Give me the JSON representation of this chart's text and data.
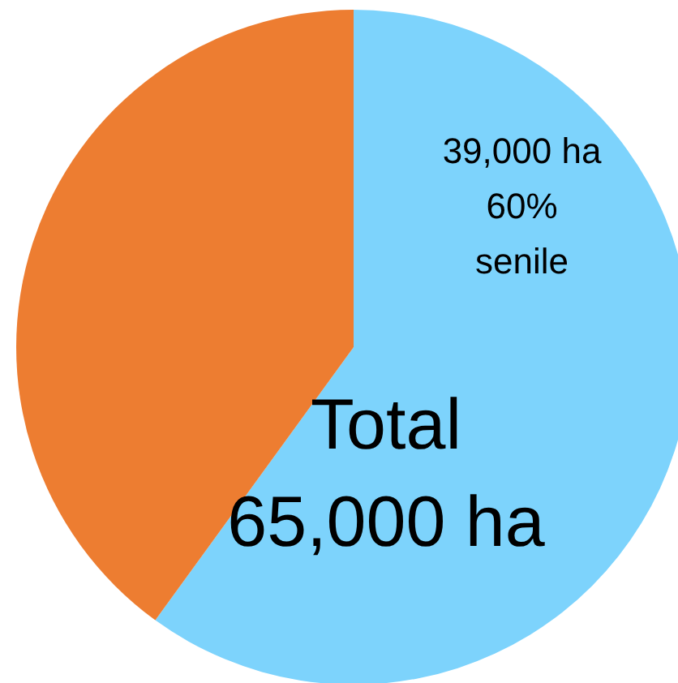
{
  "chart_data": {
    "type": "pie",
    "categories": [
      "senile",
      null
    ],
    "values": [
      60,
      40
    ],
    "colors": [
      "#7dd3fc",
      "#ed7d31"
    ],
    "value_labels": [
      "39,000 ha\n60%",
      null
    ],
    "annotations": [
      "Total\n65,000 ha"
    ]
  }
}
